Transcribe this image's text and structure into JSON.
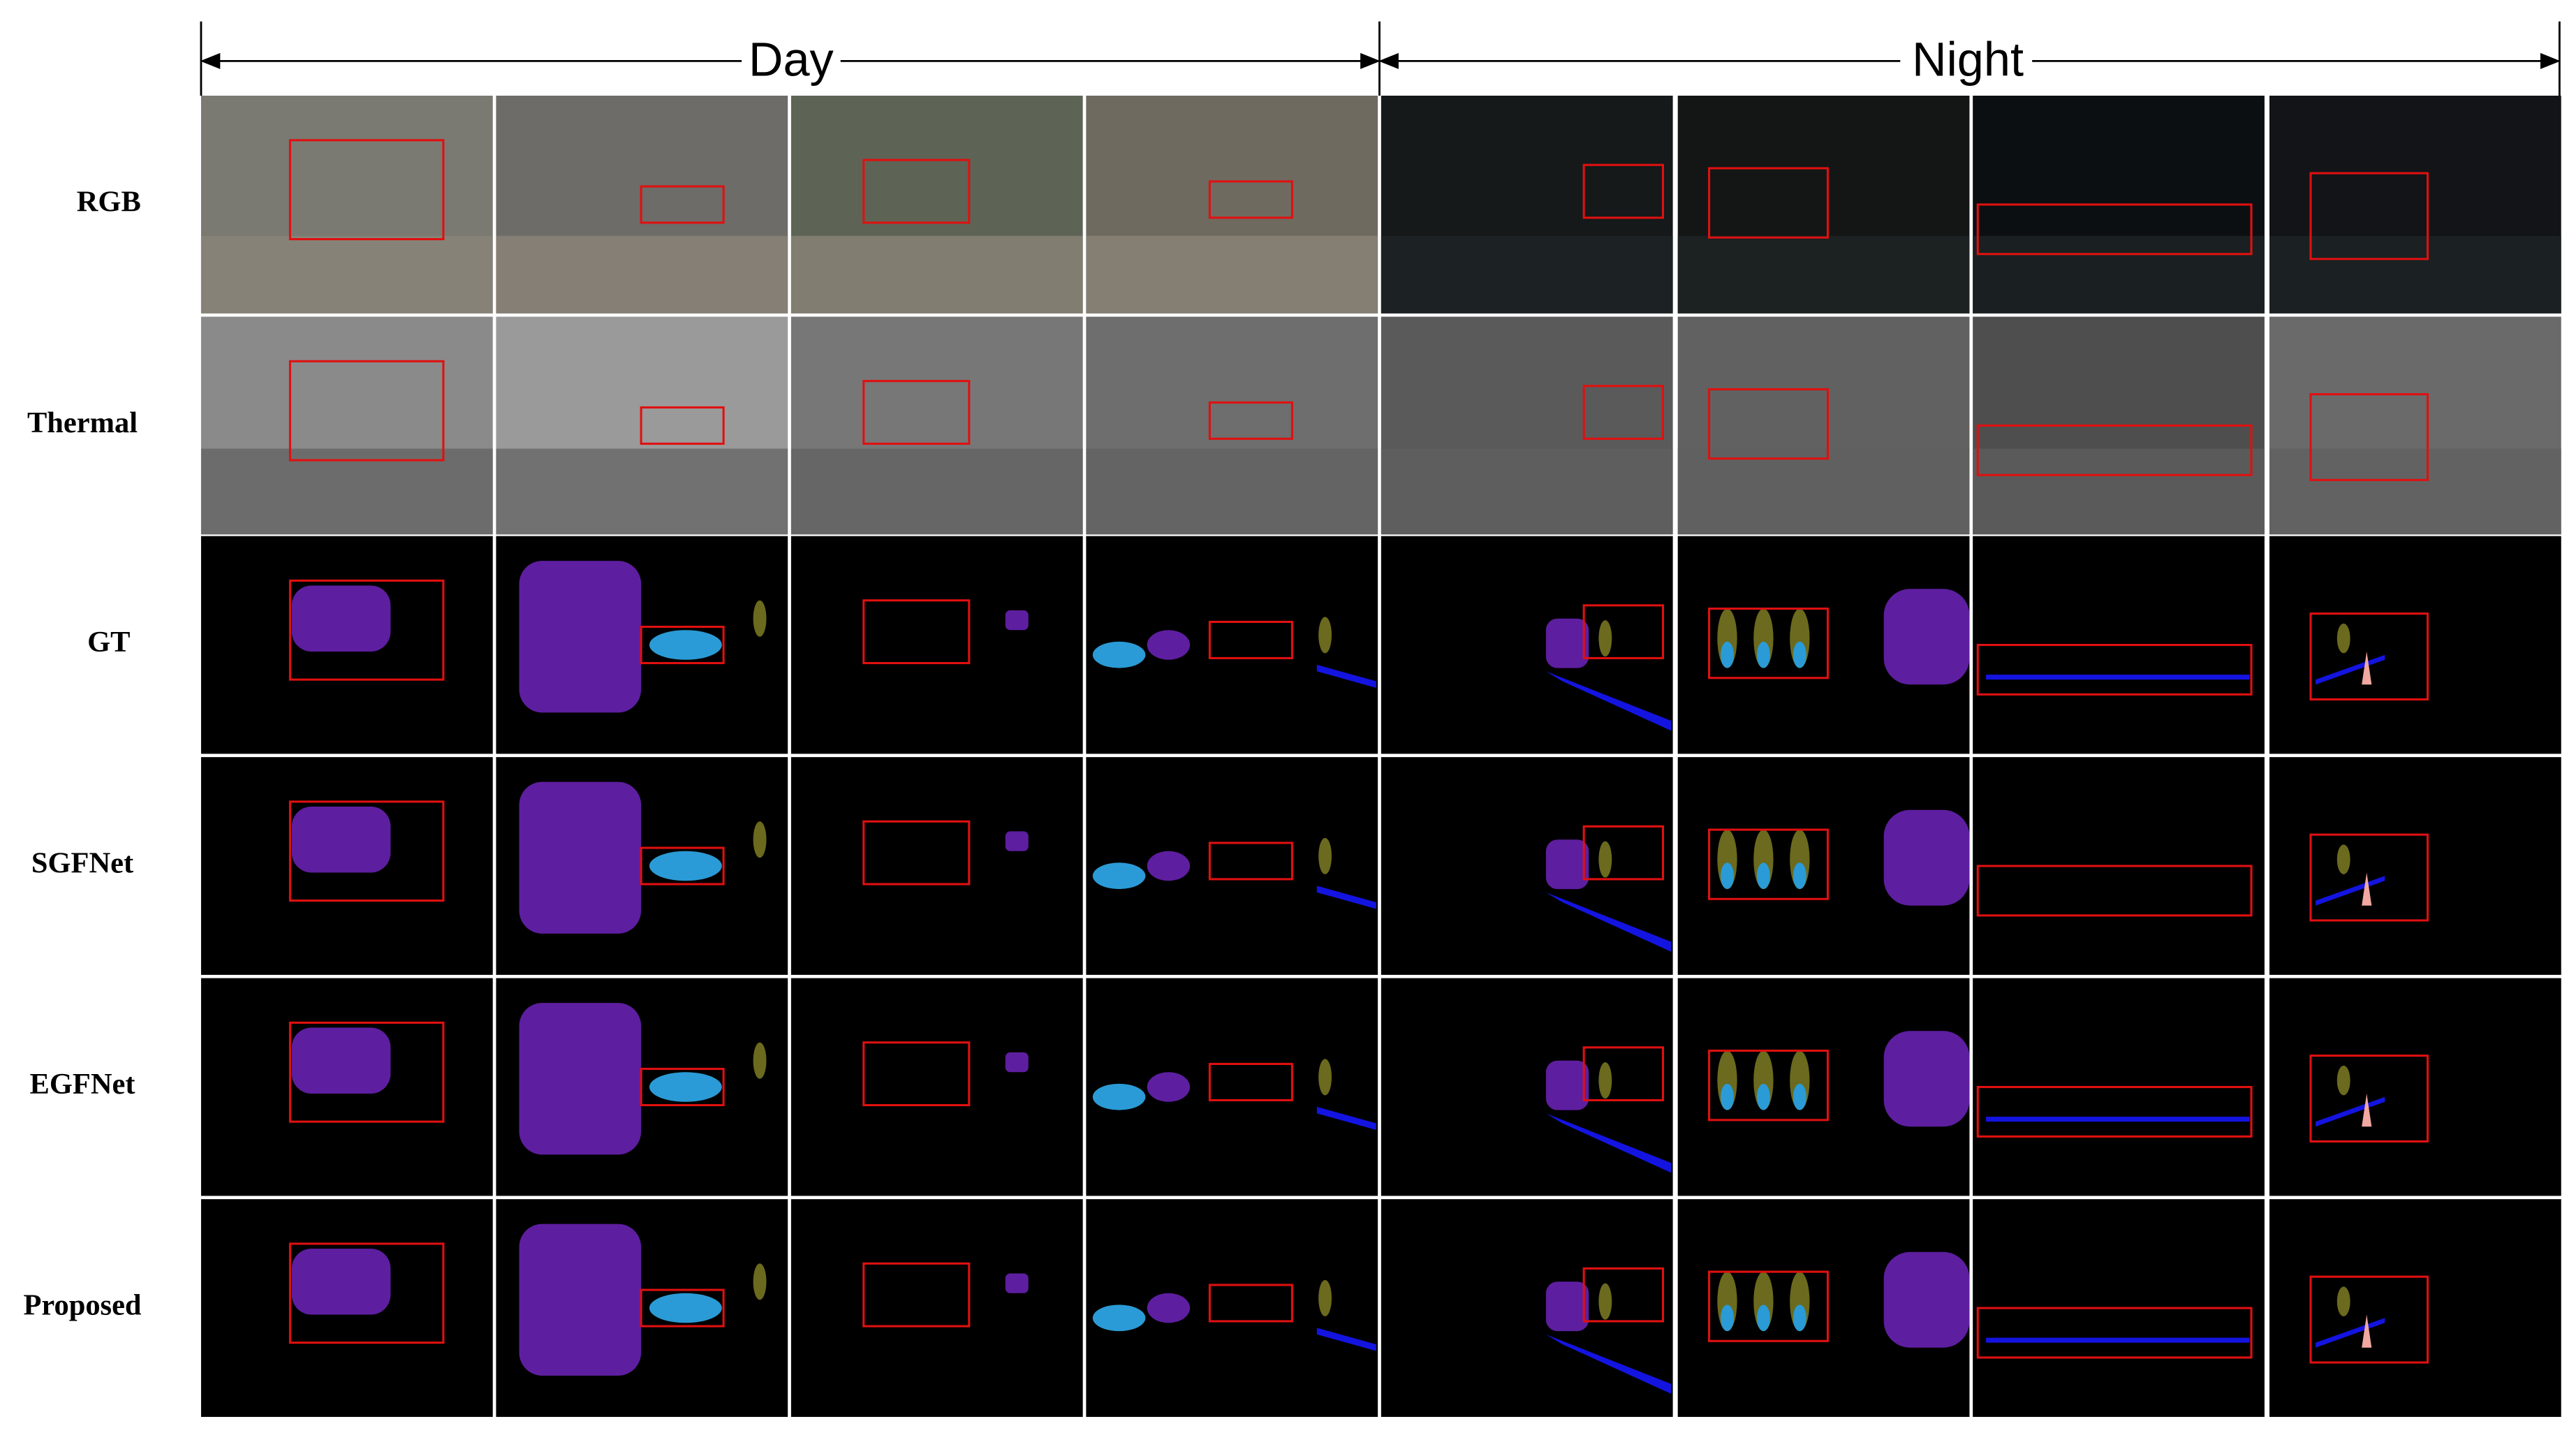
{
  "header": {
    "day": "Day",
    "night": "Night"
  },
  "rows": [
    "RGB",
    "Thermal",
    "GT",
    "SGFNet",
    "EGFNet",
    "Proposed"
  ]
}
